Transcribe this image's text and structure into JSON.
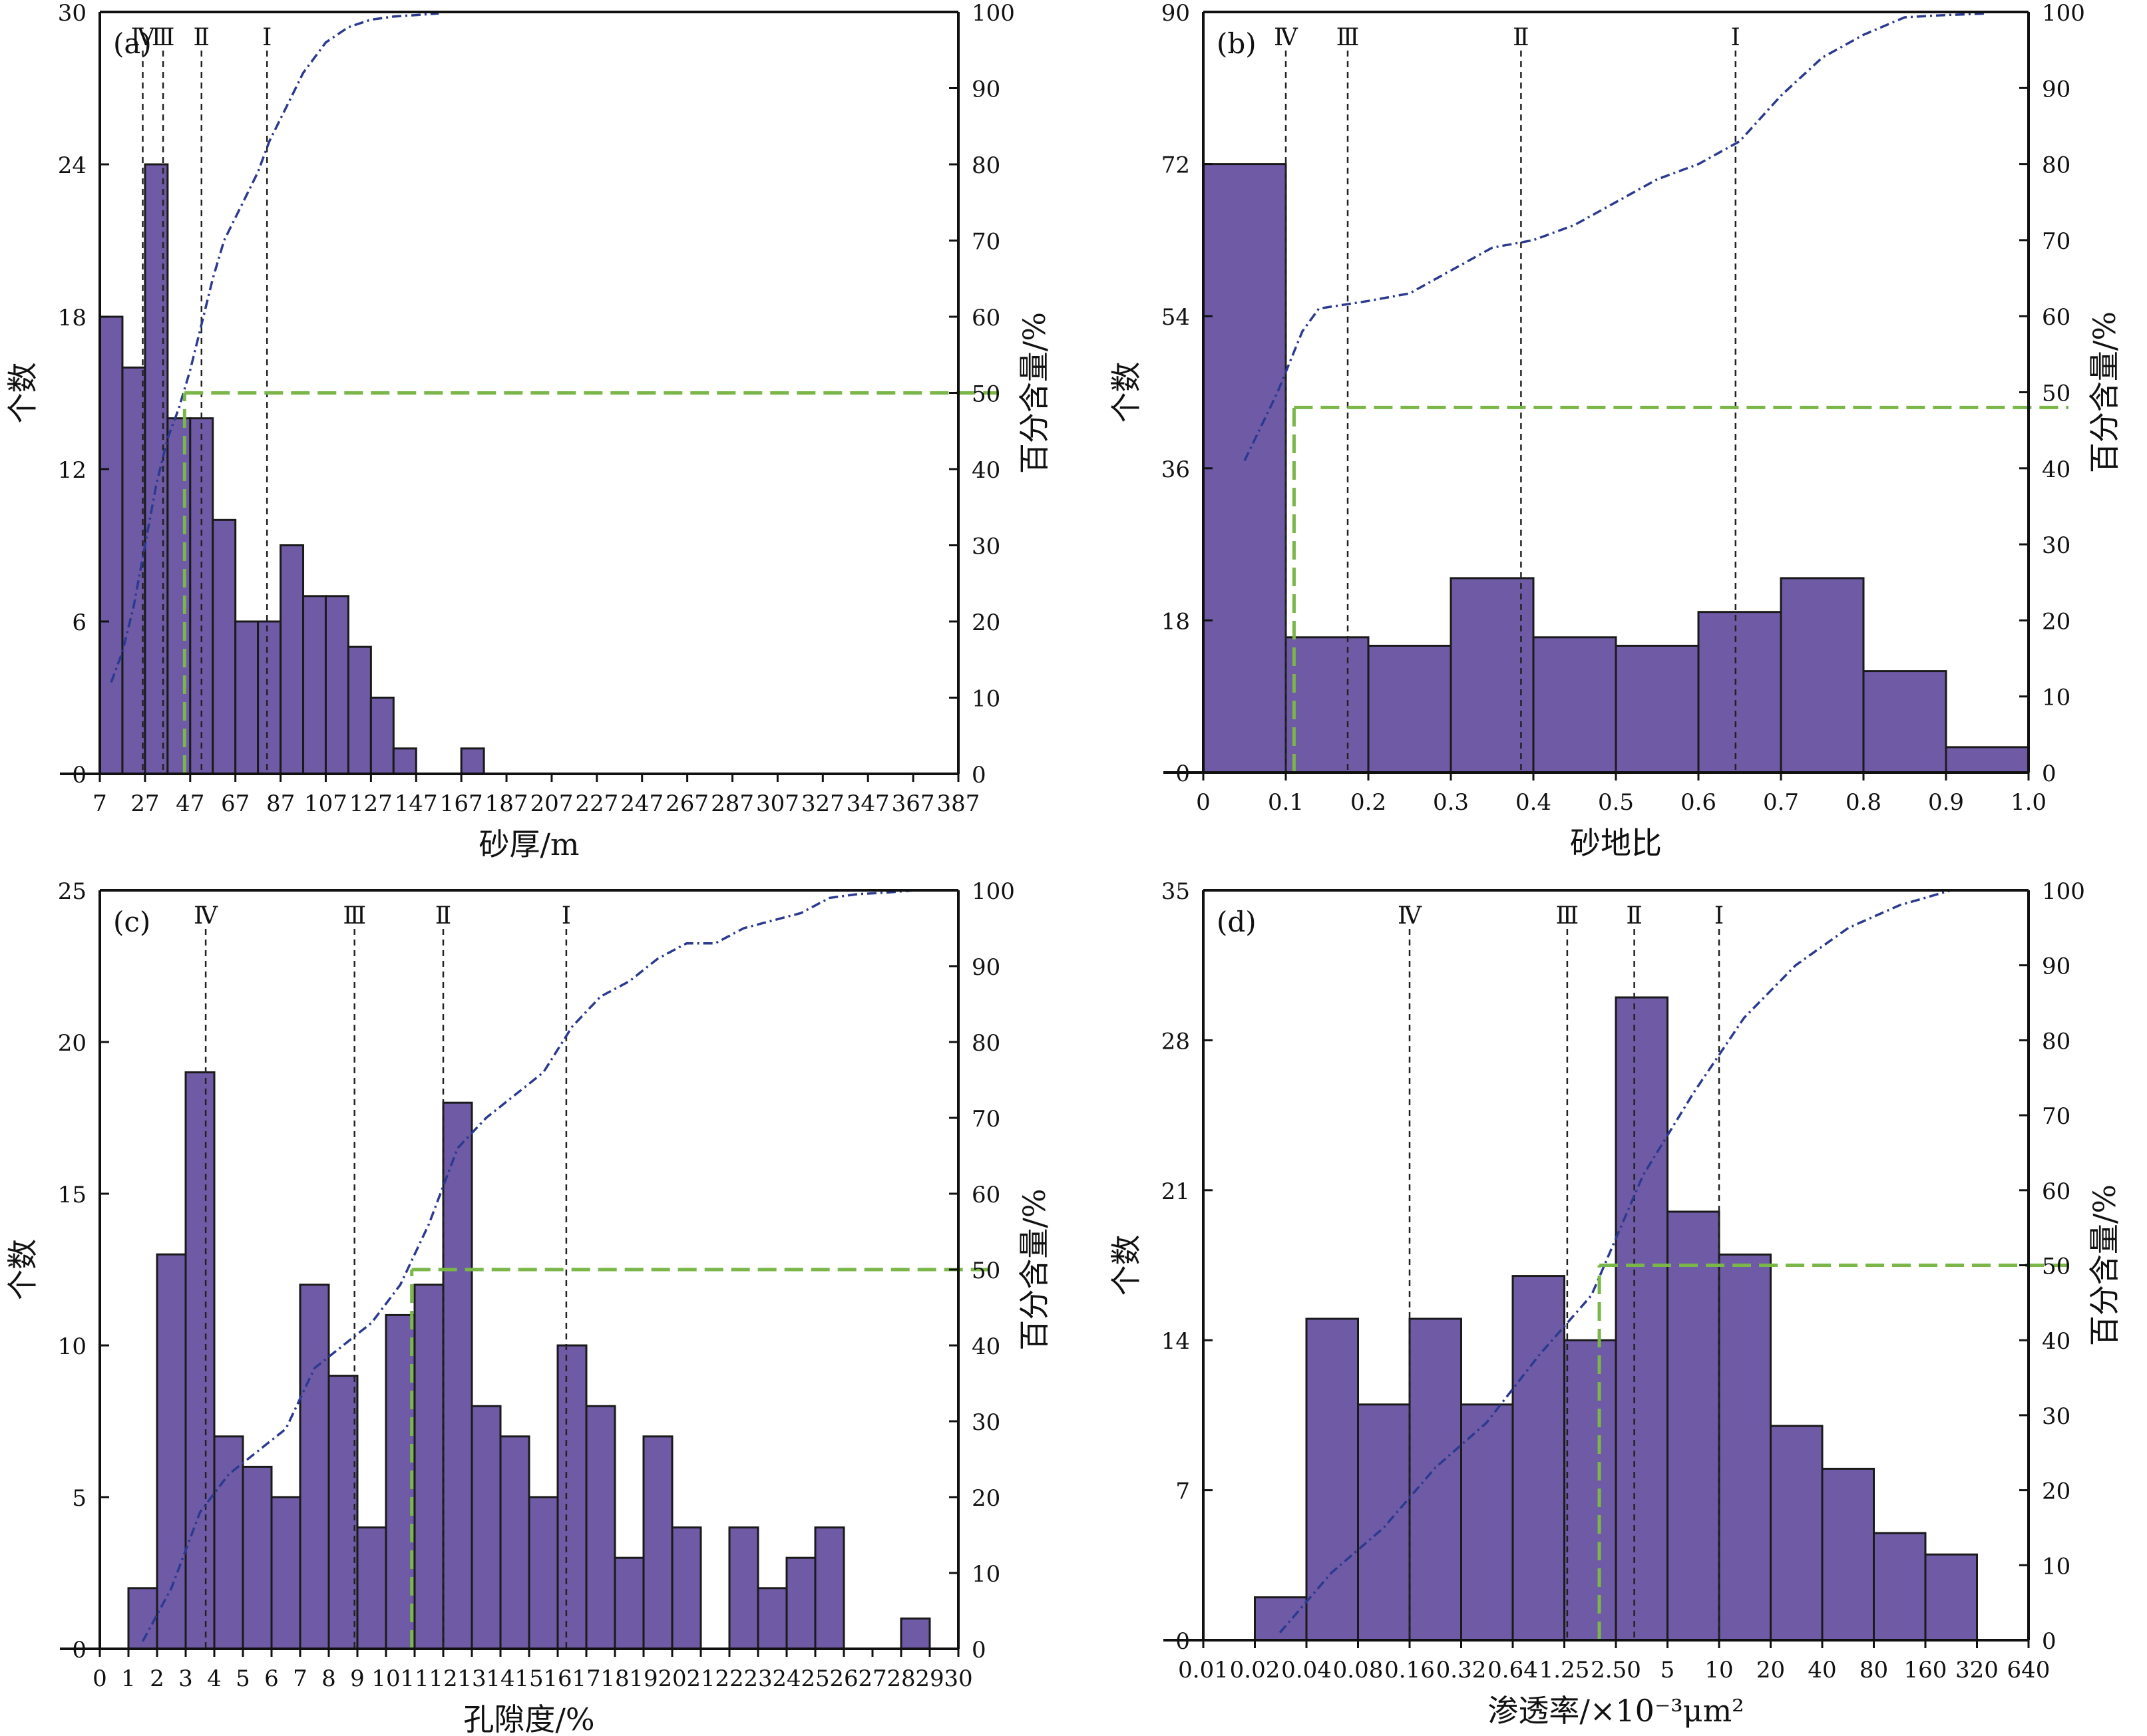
{
  "colors": {
    "bar_fill": "#6f5aa6",
    "bar_stroke": "#1a1a1a",
    "cumulative_line": "#2b3a8f",
    "median_guide": "#7ab648",
    "class_lines": "#222222",
    "axis": "#111111"
  },
  "chart_data": [
    {
      "type": "bar",
      "panel_label": "(a)",
      "xlabel": "砂厚/m",
      "ylabel": "个数",
      "y2label": "百分含量/%",
      "ylim": [
        0,
        30
      ],
      "yticks": [
        "0",
        "6",
        "12",
        "18",
        "24",
        "30"
      ],
      "y2lim": [
        0,
        100
      ],
      "y2ticks": [
        "0",
        "10",
        "20",
        "30",
        "40",
        "50",
        "60",
        "70",
        "80",
        "90",
        "100"
      ],
      "xticks": [
        "7",
        "27",
        "47",
        "67",
        "87",
        "107",
        "127",
        "147",
        "167",
        "187",
        "207",
        "227",
        "247",
        "267",
        "287",
        "307",
        "327",
        "347",
        "367",
        "387"
      ],
      "bins": [
        {
          "from": 7,
          "to": 17,
          "count": 18
        },
        {
          "from": 17,
          "to": 27,
          "count": 16
        },
        {
          "from": 27,
          "to": 37,
          "count": 24
        },
        {
          "from": 37,
          "to": 47,
          "count": 14
        },
        {
          "from": 47,
          "to": 57,
          "count": 14
        },
        {
          "from": 57,
          "to": 67,
          "count": 10
        },
        {
          "from": 67,
          "to": 77,
          "count": 6
        },
        {
          "from": 77,
          "to": 87,
          "count": 6
        },
        {
          "from": 87,
          "to": 97,
          "count": 9
        },
        {
          "from": 97,
          "to": 107,
          "count": 7
        },
        {
          "from": 107,
          "to": 117,
          "count": 7
        },
        {
          "from": 117,
          "to": 127,
          "count": 5
        },
        {
          "from": 127,
          "to": 137,
          "count": 3
        },
        {
          "from": 137,
          "to": 147,
          "count": 1
        },
        {
          "from": 167,
          "to": 177,
          "count": 1
        }
      ],
      "cumulative_percent": {
        "x": [
          12,
          17,
          22,
          27,
          32,
          37,
          42,
          47,
          52,
          57,
          62,
          67,
          72,
          77,
          82,
          87,
          92,
          97,
          102,
          107,
          112,
          117,
          122,
          127,
          132,
          137,
          142,
          147,
          152,
          157
        ],
        "y": [
          12,
          16,
          22,
          30,
          38,
          44,
          48,
          53,
          59,
          65,
          70,
          73,
          76,
          79,
          83,
          86,
          89,
          92,
          94,
          96,
          97,
          98,
          98.5,
          99,
          99.2,
          99.4,
          99.5,
          99.6,
          99.7,
          99.8
        ]
      },
      "median_guide": {
        "x": 44.5,
        "y2": 50
      },
      "class_lines": [
        {
          "label": "Ⅳ",
          "x": 26
        },
        {
          "label": "Ⅲ",
          "x": 35
        },
        {
          "label": "Ⅱ",
          "x": 52
        },
        {
          "label": "Ⅰ",
          "x": 81
        }
      ]
    },
    {
      "type": "bar",
      "panel_label": "(b)",
      "xlabel": "砂地比",
      "ylabel": "个数",
      "y2label": "百分含量/%",
      "ylim": [
        0,
        90
      ],
      "yticks": [
        "0",
        "18",
        "36",
        "54",
        "72",
        "90"
      ],
      "y2lim": [
        0,
        100
      ],
      "y2ticks": [
        "0",
        "10",
        "20",
        "30",
        "40",
        "50",
        "60",
        "70",
        "80",
        "90",
        "100"
      ],
      "xticks": [
        "0",
        "0.1",
        "0.2",
        "0.3",
        "0.4",
        "0.5",
        "0.6",
        "0.7",
        "0.8",
        "0.9",
        "1.0"
      ],
      "bins": [
        {
          "from": 0,
          "to": 0.1,
          "count": 72
        },
        {
          "from": 0.1,
          "to": 0.2,
          "count": 16
        },
        {
          "from": 0.2,
          "to": 0.3,
          "count": 15
        },
        {
          "from": 0.3,
          "to": 0.4,
          "count": 23
        },
        {
          "from": 0.4,
          "to": 0.5,
          "count": 16
        },
        {
          "from": 0.5,
          "to": 0.6,
          "count": 15
        },
        {
          "from": 0.6,
          "to": 0.7,
          "count": 19
        },
        {
          "from": 0.7,
          "to": 0.8,
          "count": 23
        },
        {
          "from": 0.8,
          "to": 0.9,
          "count": 12
        },
        {
          "from": 0.9,
          "to": 1.0,
          "count": 3
        }
      ],
      "cumulative_percent": {
        "x": [
          0.05,
          0.09,
          0.12,
          0.14,
          0.2,
          0.25,
          0.3,
          0.35,
          0.4,
          0.45,
          0.5,
          0.55,
          0.6,
          0.65,
          0.7,
          0.75,
          0.8,
          0.85,
          0.9,
          0.95
        ],
        "y": [
          41,
          50,
          58,
          61,
          62,
          63,
          66,
          69,
          70,
          72,
          75,
          78,
          80,
          83,
          89,
          94,
          97,
          99.3,
          99.6,
          99.8
        ]
      },
      "median_guide": {
        "x": 0.11,
        "y2": 48
      },
      "class_lines": [
        {
          "label": "Ⅳ",
          "x": 0.1
        },
        {
          "label": "Ⅲ",
          "x": 0.175
        },
        {
          "label": "Ⅱ",
          "x": 0.385
        },
        {
          "label": "Ⅰ",
          "x": 0.645
        }
      ]
    },
    {
      "type": "bar",
      "panel_label": "(c)",
      "xlabel": "孔隙度/%",
      "ylabel": "个数",
      "y2label": "百分含量/%",
      "ylim": [
        0,
        25
      ],
      "yticks": [
        "0",
        "5",
        "10",
        "15",
        "20",
        "25"
      ],
      "y2lim": [
        0,
        100
      ],
      "y2ticks": [
        "0",
        "10",
        "20",
        "30",
        "40",
        "50",
        "60",
        "70",
        "80",
        "90",
        "100"
      ],
      "xticks": [
        "0",
        "1",
        "2",
        "3",
        "4",
        "5",
        "6",
        "7",
        "8",
        "9",
        "10",
        "11",
        "12",
        "13",
        "14",
        "15",
        "16",
        "17",
        "18",
        "19",
        "20",
        "21",
        "22",
        "23",
        "24",
        "25",
        "26",
        "27",
        "28",
        "29",
        "30"
      ],
      "bins": [
        {
          "from": 1,
          "to": 2,
          "count": 2
        },
        {
          "from": 2,
          "to": 3,
          "count": 13
        },
        {
          "from": 3,
          "to": 4,
          "count": 19
        },
        {
          "from": 4,
          "to": 5,
          "count": 7
        },
        {
          "from": 5,
          "to": 6,
          "count": 6
        },
        {
          "from": 6,
          "to": 7,
          "count": 5
        },
        {
          "from": 7,
          "to": 8,
          "count": 12
        },
        {
          "from": 8,
          "to": 9,
          "count": 9
        },
        {
          "from": 9,
          "to": 10,
          "count": 4
        },
        {
          "from": 10,
          "to": 11,
          "count": 11
        },
        {
          "from": 11,
          "to": 12,
          "count": 12
        },
        {
          "from": 12,
          "to": 13,
          "count": 18
        },
        {
          "from": 13,
          "to": 14,
          "count": 8
        },
        {
          "from": 14,
          "to": 15,
          "count": 7
        },
        {
          "from": 15,
          "to": 16,
          "count": 5
        },
        {
          "from": 16,
          "to": 17,
          "count": 10
        },
        {
          "from": 17,
          "to": 18,
          "count": 8
        },
        {
          "from": 18,
          "to": 19,
          "count": 3
        },
        {
          "from": 19,
          "to": 20,
          "count": 7
        },
        {
          "from": 20,
          "to": 21,
          "count": 4
        },
        {
          "from": 22,
          "to": 23,
          "count": 4
        },
        {
          "from": 23,
          "to": 24,
          "count": 2
        },
        {
          "from": 24,
          "to": 25,
          "count": 3
        },
        {
          "from": 25,
          "to": 26,
          "count": 4
        },
        {
          "from": 28,
          "to": 29,
          "count": 1
        }
      ],
      "cumulative_percent": {
        "x": [
          1.5,
          2.5,
          3.5,
          4.5,
          5.5,
          6.5,
          7.5,
          8.5,
          9.5,
          10.5,
          11.5,
          12.5,
          13.5,
          14.5,
          15.5,
          16.5,
          17.5,
          18.5,
          19.5,
          20.5,
          21.5,
          22.5,
          23.5,
          24.5,
          25.5,
          26.5,
          27.5,
          28.5
        ],
        "y": [
          1,
          8,
          18,
          23,
          26,
          29,
          37,
          40,
          43,
          48,
          56,
          66,
          70,
          73,
          76,
          82,
          86,
          88,
          91,
          93,
          93,
          95,
          96,
          97,
          99,
          99.5,
          99.7,
          100
        ]
      },
      "median_guide": {
        "x": 10.9,
        "y2": 50
      },
      "class_lines": [
        {
          "label": "Ⅳ",
          "x": 3.7
        },
        {
          "label": "Ⅲ",
          "x": 8.9
        },
        {
          "label": "Ⅱ",
          "x": 12
        },
        {
          "label": "Ⅰ",
          "x": 16.3
        }
      ]
    },
    {
      "type": "bar",
      "panel_label": "(d)",
      "xlabel": "渗透率/×10⁻³μm²",
      "ylabel": "个数",
      "y2label": "百分含量/%",
      "ylim": [
        0,
        35
      ],
      "yticks": [
        "0",
        "7",
        "14",
        "21",
        "28",
        "35"
      ],
      "y2lim": [
        0,
        100
      ],
      "y2ticks": [
        "0",
        "10",
        "20",
        "30",
        "40",
        "50",
        "60",
        "70",
        "80",
        "90",
        "100"
      ],
      "xscale": "log2",
      "xticks": [
        "0.01",
        "0.02",
        "0.04",
        "0.08",
        "0.16",
        "0.32",
        "0.64",
        "1.25",
        "2.50",
        "5",
        "10",
        "20",
        "40",
        "80",
        "160",
        "320",
        "640"
      ],
      "bins": [
        {
          "from": 0.02,
          "to": 0.04,
          "count": 2
        },
        {
          "from": 0.04,
          "to": 0.08,
          "count": 15
        },
        {
          "from": 0.08,
          "to": 0.16,
          "count": 11
        },
        {
          "from": 0.16,
          "to": 0.32,
          "count": 15
        },
        {
          "from": 0.32,
          "to": 0.64,
          "count": 11
        },
        {
          "from": 0.64,
          "to": 1.25,
          "count": 17
        },
        {
          "from": 1.25,
          "to": 2.5,
          "count": 14
        },
        {
          "from": 2.5,
          "to": 5,
          "count": 30
        },
        {
          "from": 5,
          "to": 10,
          "count": 20
        },
        {
          "from": 10,
          "to": 20,
          "count": 18
        },
        {
          "from": 20,
          "to": 40,
          "count": 10
        },
        {
          "from": 40,
          "to": 80,
          "count": 8
        },
        {
          "from": 80,
          "to": 160,
          "count": 5
        },
        {
          "from": 160,
          "to": 320,
          "count": 4
        }
      ],
      "cumulative_percent": {
        "x": [
          0.028,
          0.056,
          0.113,
          0.226,
          0.45,
          0.9,
          1.8,
          3.6,
          7.1,
          14,
          28,
          57,
          113,
          226
        ],
        "y": [
          1,
          9,
          15,
          23,
          29,
          38,
          46,
          62,
          73,
          83,
          90,
          95,
          98,
          100
        ]
      },
      "median_guide": {
        "x": 2.0,
        "y2": 50
      },
      "class_lines": [
        {
          "label": "Ⅳ",
          "x": 0.16
        },
        {
          "label": "Ⅲ",
          "x": 1.3
        },
        {
          "label": "Ⅱ",
          "x": 3.2
        },
        {
          "label": "Ⅰ",
          "x": 10
        }
      ]
    }
  ]
}
